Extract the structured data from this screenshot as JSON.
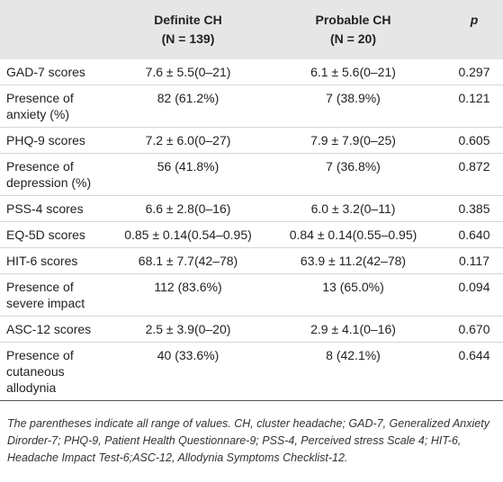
{
  "table": {
    "header": [
      {
        "line1": "Definite CH",
        "line2": "(N = 139)"
      },
      {
        "line1": "Probable CH",
        "line2": "(N = 20)"
      },
      {
        "line1": "p"
      }
    ],
    "rows": [
      [
        "GAD-7 scores",
        "7.6 ± 5.5(0–21)",
        "6.1 ± 5.6(0–21)",
        "0.297"
      ],
      [
        "Presence of anxiety (%)",
        "82 (61.2%)",
        "7 (38.9%)",
        "0.121"
      ],
      [
        "PHQ-9 scores",
        "7.2 ± 6.0(0–27)",
        "7.9 ± 7.9(0–25)",
        "0.605"
      ],
      [
        "Presence of depression (%)",
        "56 (41.8%)",
        "7 (36.8%)",
        "0.872"
      ],
      [
        "PSS-4 scores",
        "6.6 ± 2.8(0–16)",
        "6.0 ± 3.2(0–11)",
        "0.385"
      ],
      [
        "EQ-5D scores",
        "0.85 ± 0.14(0.54–0.95)",
        "0.84 ± 0.14(0.55–0.95)",
        "0.640"
      ],
      [
        "HIT-6 scores",
        "68.1 ± 7.7(42–78)",
        "63.9 ± 11.2(42–78)",
        "0.117"
      ],
      [
        "Presence of severe impact",
        "112 (83.6%)",
        "13 (65.0%)",
        "0.094"
      ],
      [
        "ASC-12 scores",
        "2.5 ± 3.9(0–20)",
        "2.9 ± 4.1(0–16)",
        "0.670"
      ],
      [
        "Presence of cutaneous allodynia",
        "40 (33.6%)",
        "8 (42.1%)",
        "0.644"
      ]
    ],
    "footnote": "The parentheses indicate all range of values. CH, cluster headache; GAD-7, Generalized Anxiety Dirorder-7; PHQ-9, Patient Health Questionnare-9; PSS-4, Perceived stress Scale 4; HIT-6, Headache Impact Test-6;ASC-12, Allodynia Symptoms Checklist-12."
  }
}
